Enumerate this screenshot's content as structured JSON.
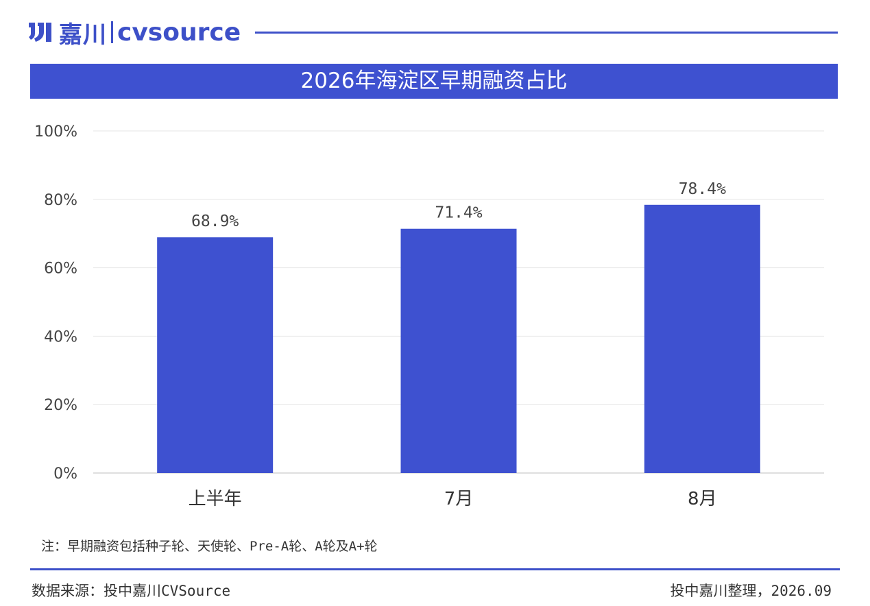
{
  "brand": {
    "name_cn": "嘉川",
    "name_en": "cvsource",
    "color": "#3d50c8"
  },
  "chart_data": {
    "type": "bar",
    "title": "2026年海淀区早期融资占比",
    "categories": [
      "上半年",
      "7月",
      "8月"
    ],
    "values": [
      68.9,
      71.4,
      78.4
    ],
    "value_labels": [
      "68.9%",
      "71.4%",
      "78.4%"
    ],
    "ylim": [
      0,
      100
    ],
    "yticks": [
      "0%",
      "20%",
      "40%",
      "60%",
      "80%",
      "100%"
    ],
    "ytick_values": [
      0,
      20,
      40,
      60,
      80,
      100
    ],
    "bar_color": "#3e51d0",
    "grid": true,
    "xlabel": "",
    "ylabel": ""
  },
  "note": "注：早期融资包括种子轮、天使轮、Pre-A轮、A轮及A+轮",
  "footer": {
    "source": "数据来源：投中嘉川CVSource",
    "credit": "投中嘉川整理，2026.09"
  }
}
